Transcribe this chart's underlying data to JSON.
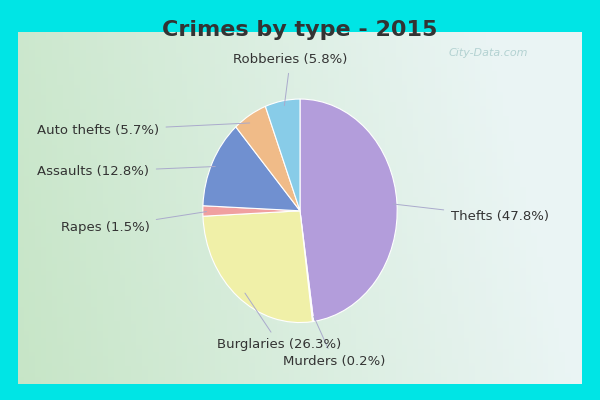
{
  "title": "Crimes by type - 2015",
  "slices": [
    {
      "label": "Thefts",
      "pct": 47.8,
      "color": "#b39ddb"
    },
    {
      "label": "Murders",
      "pct": 0.2,
      "color": "#c8c8c8"
    },
    {
      "label": "Burglaries",
      "pct": 26.3,
      "color": "#f0f0a8"
    },
    {
      "label": "Rapes",
      "pct": 1.5,
      "color": "#f0a0a0"
    },
    {
      "label": "Assaults",
      "pct": 12.8,
      "color": "#7090d0"
    },
    {
      "label": "Auto thefts",
      "pct": 5.7,
      "color": "#f0bb88"
    },
    {
      "label": "Robberies",
      "pct": 5.8,
      "color": "#88cce8"
    }
  ],
  "startangle": 90,
  "bg_outer": "#00e5e5",
  "bg_inner_left": "#b8ddb8",
  "bg_inner_right": "#e8f0f0",
  "title_color": "#333333",
  "title_fontsize": 16,
  "label_fontsize": 9.5,
  "label_color": "#333333",
  "watermark": "City-Data.com",
  "watermark_color": "#aacccc"
}
